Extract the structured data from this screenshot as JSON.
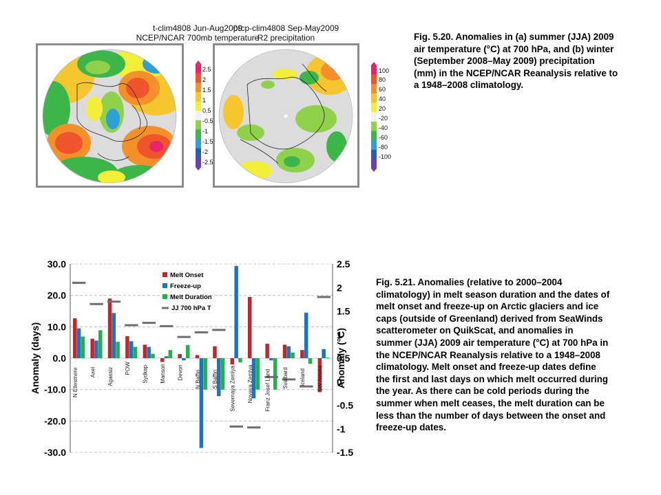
{
  "maps": [
    {
      "title_line1": "t-clim4808 Jun-Aug2009",
      "title_line2": "NCEP/NCAR 700mb temperature",
      "colorbar_labels": [
        "2.5",
        "2",
        "1.5",
        "1",
        "0.5",
        "-0.5",
        "-1",
        "-1.5",
        "-2",
        "-2.5"
      ]
    },
    {
      "title_line1": "prcp-clim4808 Sep-May2009",
      "title_line2": "R2 precipitation",
      "colorbar_labels": [
        "100",
        "80",
        "60",
        "40",
        "20",
        "-20",
        "-40",
        "-60",
        "-80",
        "-100"
      ]
    }
  ],
  "colorbar_colors": [
    "#e8246a",
    "#f0542a",
    "#f4902a",
    "#f6c62e",
    "#f3ee3a",
    "#f2f2f2",
    "#8fd14a",
    "#3cb54a",
    "#2f9fd8",
    "#2a5db6",
    "#6a3fb0"
  ],
  "caption_top": [
    "Fig. 5.20. Anomalies in (a) summer (JJA) 2009",
    "air temperature (°C) at 700 hPa, and (b) winter",
    "(September 2008–May 2009) precipitation",
    "(mm) in the NCEP/NCAR Reanalysis relative to",
    "a 1948–2008  climatology."
  ],
  "caption_bottom": [
    "Fig. 5.21. Anomalies (relative to 2000–2004",
    "climatology) in melt season duration and the dates of",
    "melt onset and freeze-up on Arctic glaciers and ice",
    "caps (outside of Greenland) derived from SeaWinds",
    "scatterometer on QuikScat, and anomalies in",
    "summer (JJA) 2009 air temperature (°C) at 700 hPa in",
    "the NCEP/NCAR Reanalysis relative to a 1948–2008",
    "climatology. Melt onset and freeze-up dates define",
    "the first and last days on which melt occurred during",
    "the year. As there can be cold periods during the",
    "summer when melt ceases, the melt duration can be",
    "less than the number of days between the onset and",
    "freeze-up dates."
  ],
  "chart_data": {
    "type": "bar",
    "categories": [
      "N Ellesmere",
      "Axel",
      "Agassiz",
      "POW",
      "Sydkap",
      "Manson",
      "Devon",
      "N Baffin",
      "S Baffin",
      "Severnaya Zemlya",
      "Novaya Zemlya",
      "Franz Josef Land",
      "Svalbard",
      "Iceland",
      "SW Alaska"
    ],
    "series": [
      {
        "name": "Melt Onset",
        "color": "#c0272d",
        "values": [
          12.7,
          6.2,
          19.0,
          7.0,
          4.3,
          -1.2,
          1.3,
          1.0,
          3.8,
          -2.0,
          19.5,
          4.6,
          4.3,
          2.6,
          -10.8
        ]
      },
      {
        "name": "Freeze-up",
        "color": "#1c75bc",
        "values": [
          9.5,
          5.6,
          14.4,
          5.4,
          3.6,
          0.6,
          -0.7,
          -28.6,
          -12.1,
          29.4,
          -12.8,
          -0.7,
          3.8,
          14.5,
          2.9
        ]
      },
      {
        "name": "Melt Duration",
        "color": "#23b14d",
        "values": [
          6.9,
          8.9,
          5.2,
          3.6,
          1.4,
          2.6,
          4.2,
          -10.0,
          -10.0,
          -1.3,
          -10.0,
          -10.0,
          1.8,
          -1.8,
          0.2
        ]
      }
    ],
    "line_series": {
      "name": "JJ 700 hPa T",
      "color": "#6d6e71",
      "values": [
        2.1,
        1.65,
        1.7,
        1.2,
        1.25,
        1.18,
        0.95,
        1.05,
        1.1,
        -0.95,
        -0.97,
        0.1,
        0.05,
        -0.1,
        1.8
      ]
    },
    "ylabel": "Anomaly (days)",
    "y2label": "Anomaly (°C)",
    "ylim": [
      -30,
      30
    ],
    "y2lim": [
      -1.5,
      2.5
    ],
    "yticks": [
      "30.0",
      "20.0",
      "10.0",
      "0.0",
      "-10.0",
      "-20.0",
      "-30.0"
    ],
    "y2ticks": [
      "2.5",
      "2",
      "1.5",
      "1",
      "0.5",
      "0",
      "-0.5",
      "-1",
      "-1.5"
    ],
    "grid": "dashed",
    "legend": "top-center"
  }
}
